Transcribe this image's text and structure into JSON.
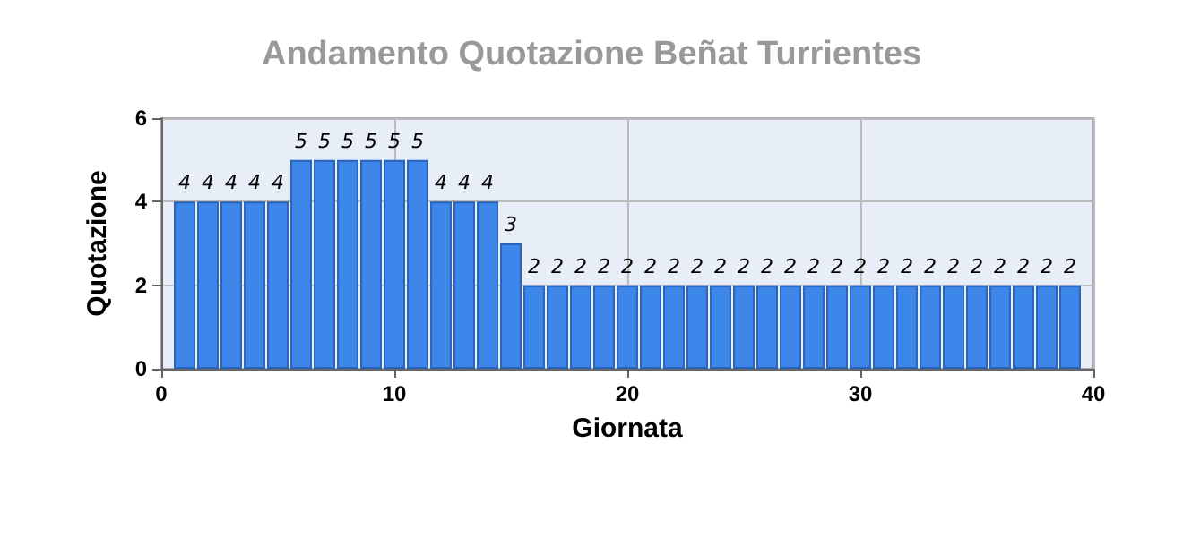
{
  "chart_data": {
    "type": "bar",
    "title": "Andamento Quotazione Beñat Turrientes",
    "xlabel": "Giornata",
    "ylabel": "Quotazione",
    "x": [
      1,
      2,
      3,
      4,
      5,
      6,
      7,
      8,
      9,
      10,
      11,
      12,
      13,
      14,
      15,
      16,
      17,
      18,
      19,
      20,
      21,
      22,
      23,
      24,
      25,
      26,
      27,
      28,
      29,
      30,
      31,
      32,
      33,
      34,
      35,
      36,
      37,
      38,
      39
    ],
    "values": [
      4,
      4,
      4,
      4,
      4,
      5,
      5,
      5,
      5,
      5,
      5,
      4,
      4,
      4,
      3,
      2,
      2,
      2,
      2,
      2,
      2,
      2,
      2,
      2,
      2,
      2,
      2,
      2,
      2,
      2,
      2,
      2,
      2,
      2,
      2,
      2,
      2,
      2,
      2
    ],
    "color": "#3d86ea",
    "xlim": [
      0,
      40
    ],
    "xticks": [
      0,
      10,
      20,
      30,
      40
    ],
    "ylim": [
      0,
      6
    ],
    "yticks": [
      0,
      2,
      4,
      6
    ],
    "grid": true,
    "data_labels": true
  }
}
